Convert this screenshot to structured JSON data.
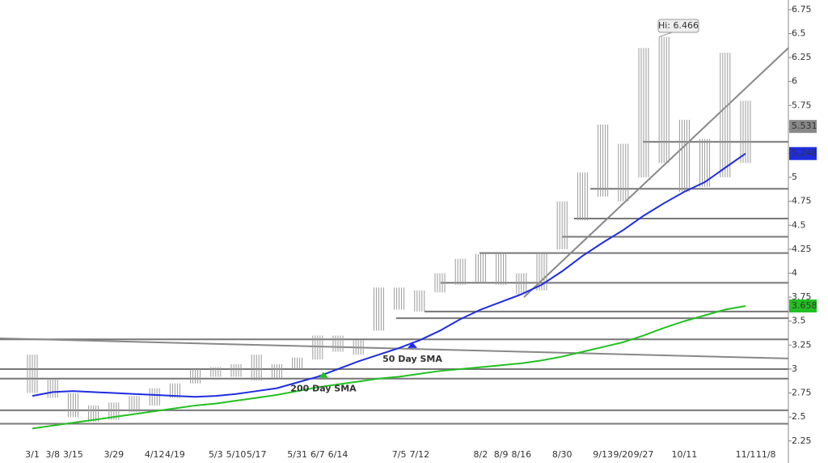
{
  "chart_data": {
    "type": "ohlc",
    "categories": [
      "3/1",
      "3/8",
      "3/15",
      null,
      "3/29",
      null,
      "4/12",
      "4/19",
      null,
      "5/3",
      "5/10",
      "5/17",
      null,
      "5/31",
      "6/7",
      "6/14",
      null,
      null,
      "7/5",
      "7/12",
      null,
      null,
      "8/2",
      "8/9",
      "8/16",
      null,
      "8/30",
      null,
      "9/13",
      "9/20",
      "9/27",
      null,
      "10/11",
      null,
      null,
      "11/1",
      "11/8"
    ],
    "price": {
      "color": "#9a9a9a",
      "high": [
        3.15,
        2.9,
        2.75,
        2.62,
        2.65,
        2.72,
        2.8,
        2.85,
        3.0,
        3.02,
        3.05,
        3.15,
        3.05,
        3.12,
        3.35,
        3.35,
        3.3,
        3.85,
        3.85,
        3.82,
        4.0,
        4.15,
        4.2,
        4.2,
        4.0,
        4.2,
        4.75,
        5.05,
        5.55,
        5.35,
        6.35,
        6.466,
        5.6,
        5.4,
        6.3,
        5.8,
        null
      ],
      "low": [
        2.75,
        2.7,
        2.5,
        2.45,
        2.47,
        2.55,
        2.62,
        2.7,
        2.85,
        2.92,
        2.92,
        2.88,
        2.9,
        3.0,
        3.1,
        3.18,
        3.15,
        3.4,
        3.62,
        3.6,
        3.8,
        3.88,
        3.9,
        3.88,
        3.78,
        3.82,
        4.25,
        4.55,
        4.8,
        4.75,
        5.0,
        5.15,
        4.85,
        4.9,
        5.0,
        5.15,
        null
      ]
    },
    "series": [
      {
        "name": "50 Day SMA",
        "color": "#1f2de0",
        "values": [
          2.72,
          2.76,
          2.77,
          2.76,
          2.75,
          2.74,
          2.73,
          2.72,
          2.71,
          2.72,
          2.74,
          2.77,
          2.8,
          2.86,
          2.92,
          3.0,
          3.08,
          3.15,
          3.22,
          3.3,
          3.4,
          3.52,
          3.62,
          3.7,
          3.78,
          3.88,
          4.02,
          4.18,
          4.32,
          4.45,
          4.6,
          4.73,
          4.85,
          4.95,
          5.1,
          5.248,
          null
        ]
      },
      {
        "name": "200 Day SMA",
        "color": "#22c022",
        "values": [
          2.38,
          2.41,
          2.44,
          2.47,
          2.5,
          2.53,
          2.56,
          2.59,
          2.62,
          2.64,
          2.67,
          2.7,
          2.73,
          2.77,
          2.81,
          2.84,
          2.87,
          2.9,
          2.92,
          2.95,
          2.98,
          3.0,
          3.02,
          3.04,
          3.06,
          3.09,
          3.13,
          3.18,
          3.23,
          3.28,
          3.35,
          3.43,
          3.5,
          3.56,
          3.62,
          3.658,
          null
        ]
      }
    ],
    "levels": [
      5.37,
      4.88,
      4.57,
      4.38,
      4.21,
      3.9,
      3.6,
      3.53,
      3.31,
      3.0,
      2.9,
      2.57,
      2.43
    ],
    "trendlines": [
      [
        3.75,
        6.35
      ],
      [
        3.32,
        3.11
      ]
    ],
    "annotation": "Hi: 6.466",
    "price_badges": [
      {
        "value": 5.531,
        "color": "#888888"
      },
      {
        "value": 5.248,
        "color": "#1f2de0"
      },
      {
        "value": 3.658,
        "color": "#22c022"
      }
    ],
    "ylim": [
      2.02,
      6.85
    ],
    "yticks": [
      2.25,
      2.5,
      2.75,
      3,
      3.25,
      3.5,
      3.75,
      4,
      4.25,
      4.5,
      4.75,
      5,
      5.25,
      5.5,
      5.75,
      6,
      6.25,
      6.5,
      6.75
    ]
  }
}
